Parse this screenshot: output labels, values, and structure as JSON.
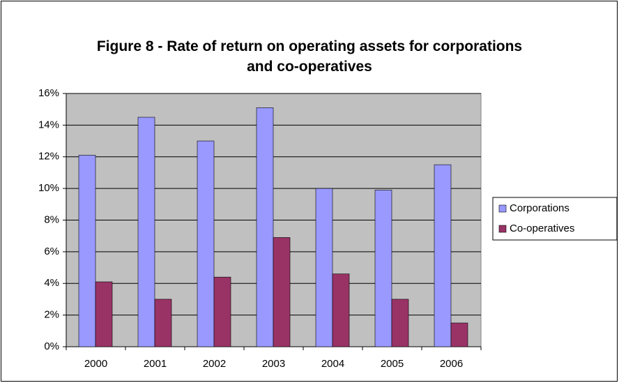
{
  "chart_data": {
    "type": "bar",
    "title": "Figure 8 - Rate of return on operating assets for corporations and co-operatives",
    "categories": [
      "2000",
      "2001",
      "2002",
      "2003",
      "2004",
      "2005",
      "2006"
    ],
    "series": [
      {
        "name": "Corporations",
        "color": "#9999ff",
        "values": [
          12.1,
          14.5,
          13.0,
          15.1,
          10.0,
          9.9,
          11.5
        ]
      },
      {
        "name": "Co-operatives",
        "color": "#993366",
        "values": [
          4.1,
          3.0,
          4.4,
          6.9,
          4.6,
          3.0,
          1.5
        ]
      }
    ],
    "ylim": [
      0,
      16
    ],
    "yticks": [
      {
        "value": 0,
        "label": "0%"
      },
      {
        "value": 2,
        "label": "2%"
      },
      {
        "value": 4,
        "label": "4%"
      },
      {
        "value": 6,
        "label": "6%"
      },
      {
        "value": 8,
        "label": "8%"
      },
      {
        "value": 10,
        "label": "10%"
      },
      {
        "value": 12,
        "label": "12%"
      },
      {
        "value": 14,
        "label": "14%"
      },
      {
        "value": 16,
        "label": "16%"
      }
    ],
    "grid": true,
    "legend": "right"
  }
}
